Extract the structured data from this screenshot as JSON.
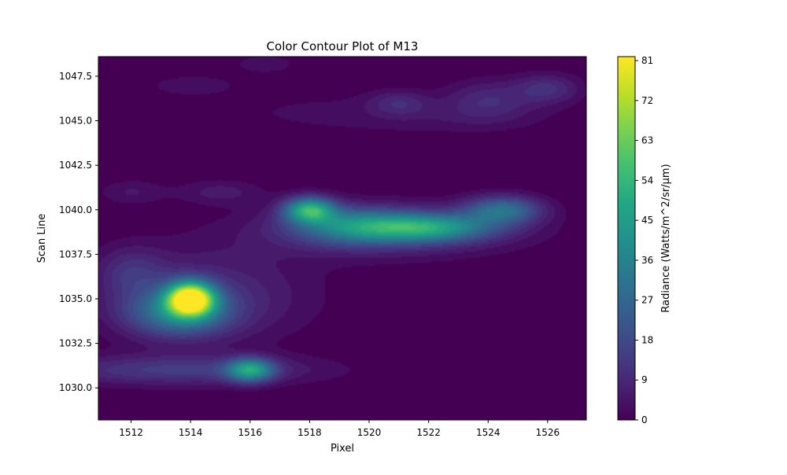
{
  "chart_data": {
    "type": "heatmap",
    "title": "Color Contour Plot of M13",
    "xlabel": "Pixel",
    "ylabel": "Scan Line",
    "xlim": [
      1510.9,
      1527.3
    ],
    "ylim": [
      1028.2,
      1048.6
    ],
    "x_ticks": [
      1512,
      1514,
      1516,
      1518,
      1520,
      1522,
      1524,
      1526
    ],
    "y_ticks": [
      1030.0,
      1032.5,
      1035.0,
      1037.5,
      1040.0,
      1042.5,
      1045.0,
      1047.5
    ],
    "colorbar": {
      "label": "Radiance (Watts/m^2/sr/µm)",
      "ticks": [
        0,
        9,
        18,
        27,
        36,
        45,
        54,
        63,
        72,
        81
      ],
      "range": [
        0,
        81.9
      ],
      "colormap": "viridis"
    },
    "grid": false,
    "features": [
      {
        "x": 1514,
        "y": 1035,
        "value": 81,
        "sx": 0.55,
        "sy": 0.65
      },
      {
        "x": 1513.6,
        "y": 1034.2,
        "value": 30,
        "sx": 1.2,
        "sy": 0.9
      },
      {
        "x": 1514.5,
        "y": 1035.2,
        "value": 12,
        "sx": 2.4,
        "sy": 1.8
      },
      {
        "x": 1516,
        "y": 1031,
        "value": 42,
        "sx": 0.55,
        "sy": 0.45
      },
      {
        "x": 1513.5,
        "y": 1031,
        "value": 15,
        "sx": 3.2,
        "sy": 0.6
      },
      {
        "x": 1518,
        "y": 1040,
        "value": 48,
        "sx": 0.6,
        "sy": 0.5
      },
      {
        "x": 1519.5,
        "y": 1039.1,
        "value": 28,
        "sx": 1.4,
        "sy": 0.7
      },
      {
        "x": 1522,
        "y": 1039,
        "value": 38,
        "sx": 1.5,
        "sy": 0.55
      },
      {
        "x": 1520.5,
        "y": 1038.8,
        "value": 14,
        "sx": 3.0,
        "sy": 1.0
      },
      {
        "x": 1524.5,
        "y": 1040,
        "value": 30,
        "sx": 0.9,
        "sy": 0.55
      },
      {
        "x": 1512,
        "y": 1036.5,
        "value": 10,
        "sx": 0.8,
        "sy": 1.0
      },
      {
        "x": 1512,
        "y": 1041,
        "value": 6,
        "sx": 0.8,
        "sy": 0.5
      },
      {
        "x": 1515,
        "y": 1041,
        "value": 7,
        "sx": 1.0,
        "sy": 0.5
      },
      {
        "x": 1514,
        "y": 1047,
        "value": 5,
        "sx": 1.0,
        "sy": 0.4
      },
      {
        "x": 1516.5,
        "y": 1048.2,
        "value": 4,
        "sx": 1.0,
        "sy": 0.5
      },
      {
        "x": 1521,
        "y": 1046,
        "value": 9,
        "sx": 0.7,
        "sy": 0.5
      },
      {
        "x": 1524,
        "y": 1046.2,
        "value": 10,
        "sx": 1.0,
        "sy": 0.8
      },
      {
        "x": 1526,
        "y": 1046.8,
        "value": 12,
        "sx": 0.8,
        "sy": 0.6
      },
      {
        "x": 1523,
        "y": 1045.2,
        "value": 4,
        "sx": 2.5,
        "sy": 0.7
      },
      {
        "x": 1518,
        "y": 1045.5,
        "value": 3,
        "sx": 3.0,
        "sy": 1.0
      }
    ]
  }
}
